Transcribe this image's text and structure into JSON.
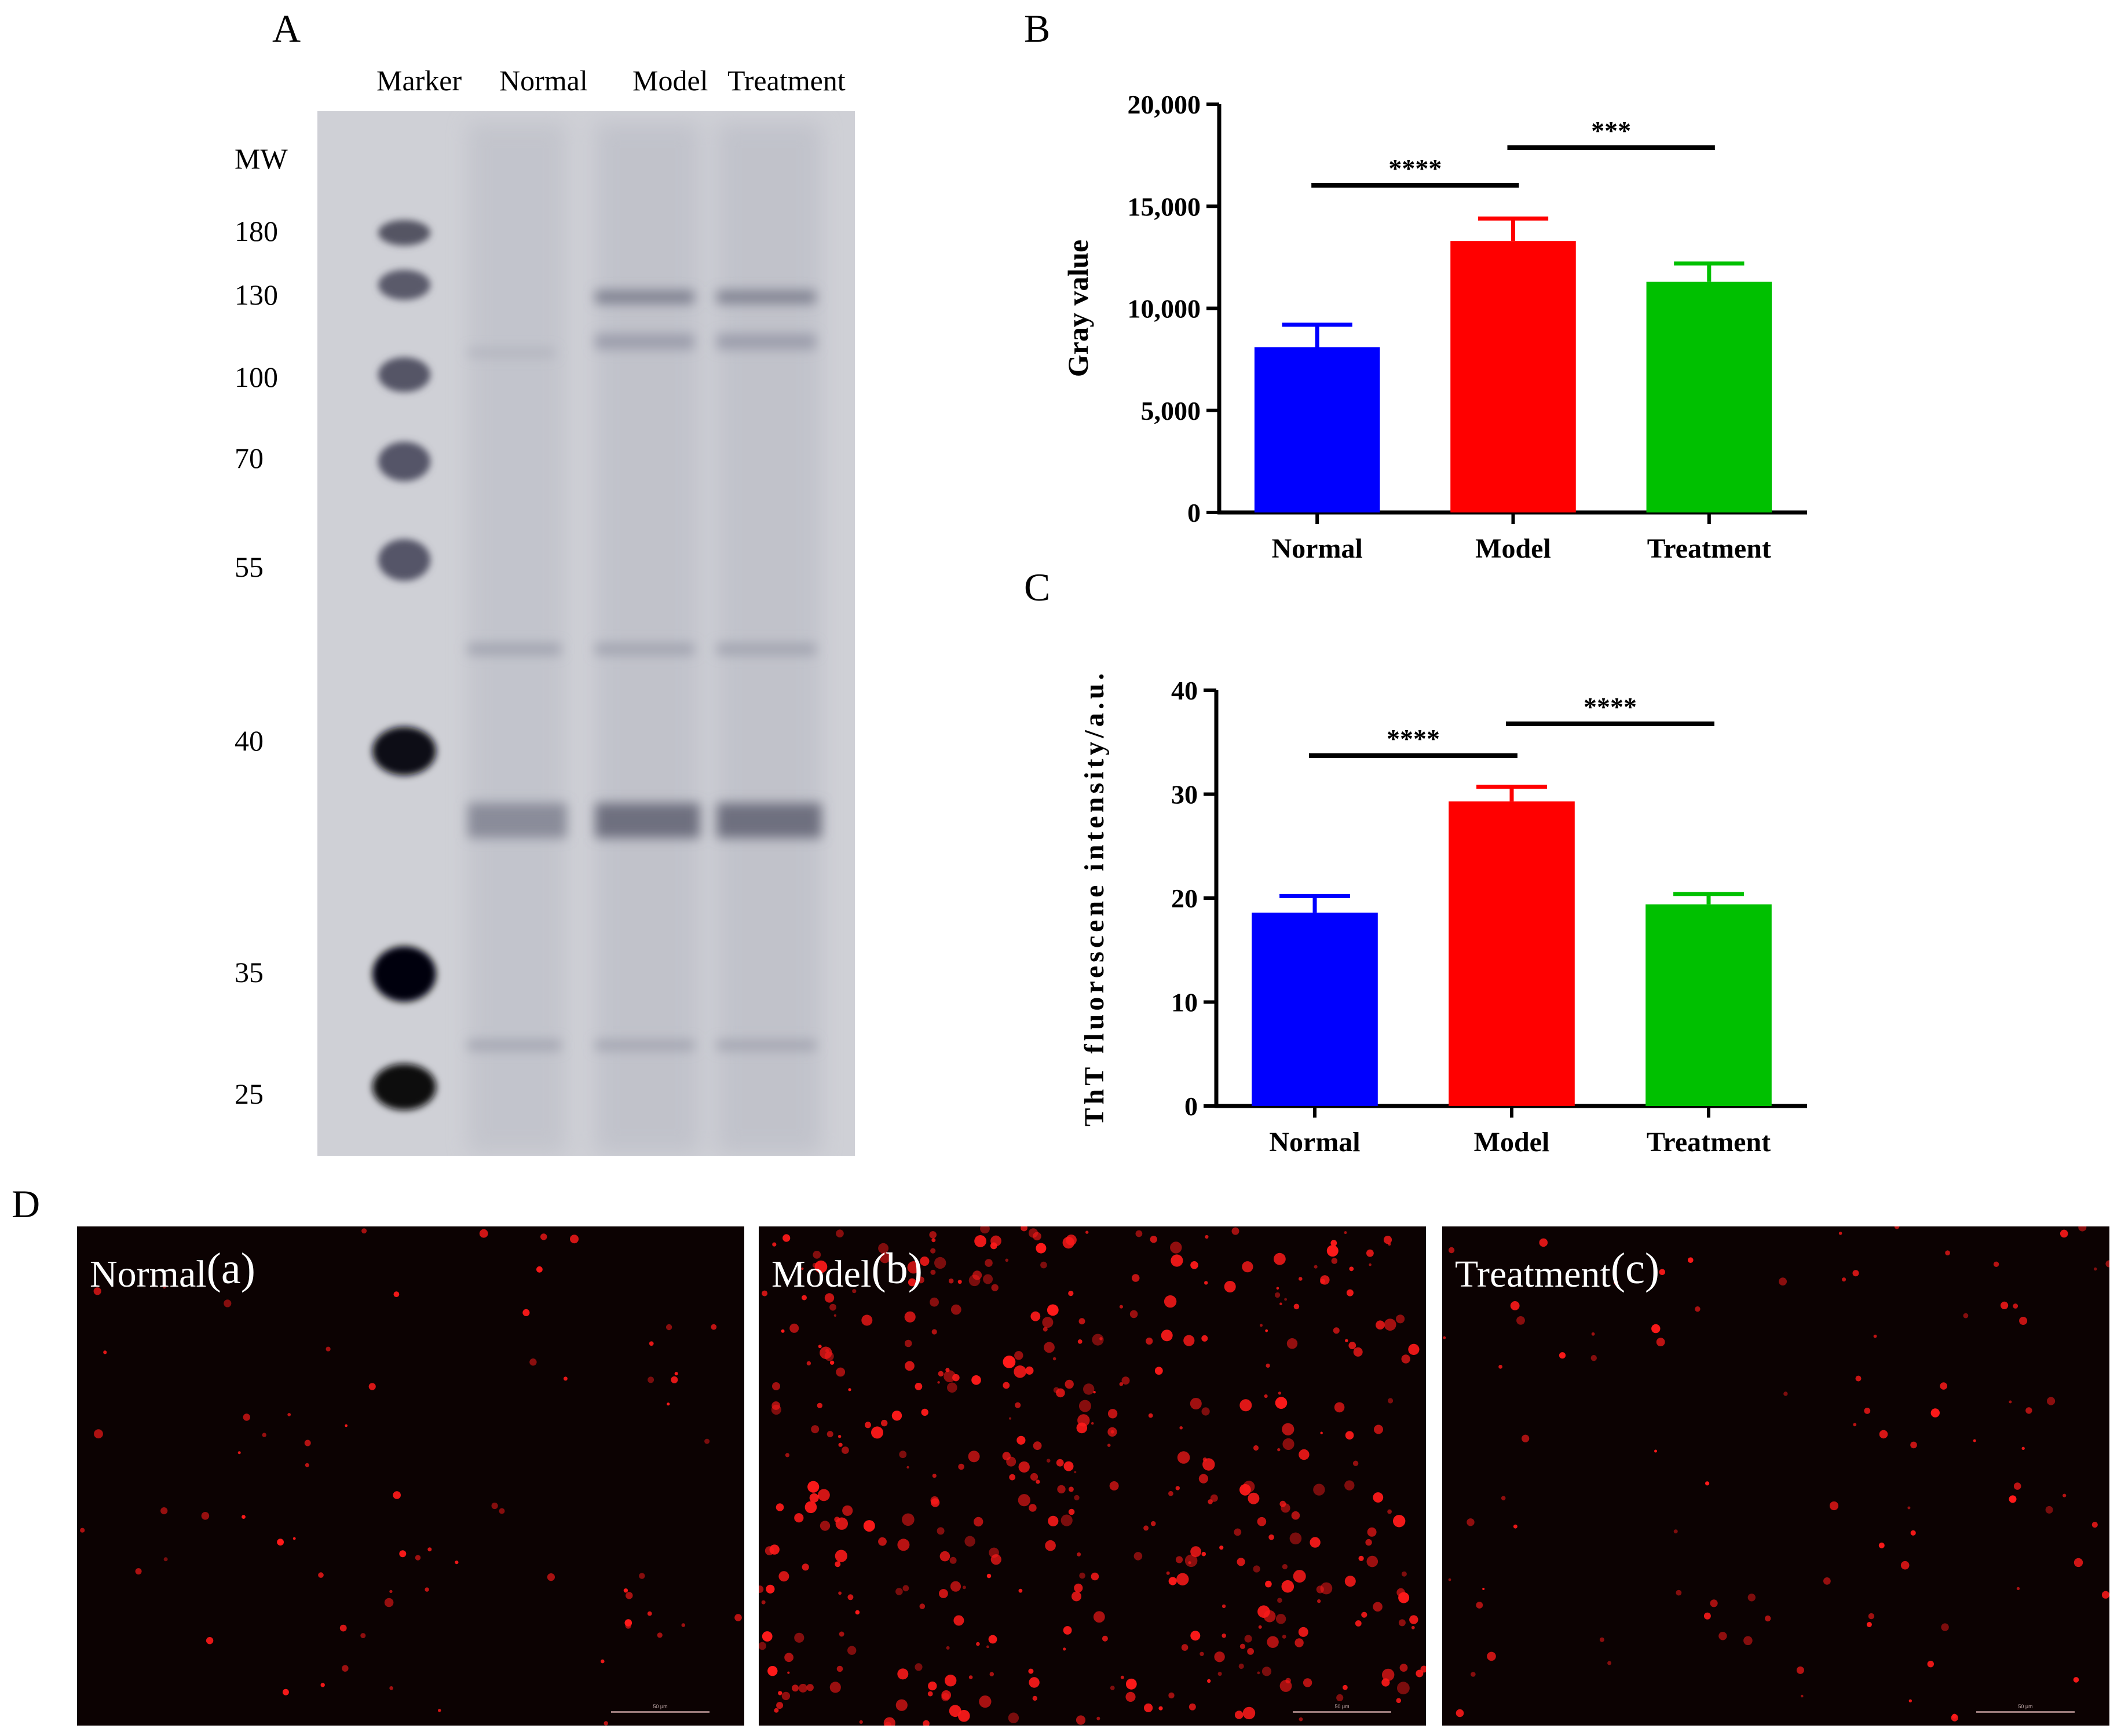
{
  "panel_a": {
    "letter": "A",
    "lanes": [
      "Marker",
      "Normal",
      "Model",
      "Treatment"
    ],
    "mw_title": "MW",
    "mw_markers": [
      "180",
      "130",
      "100",
      "70",
      "55",
      "40",
      "35",
      "25"
    ]
  },
  "chart_data": [
    {
      "panel": "B",
      "type": "bar",
      "categories": [
        "Normal",
        "Model",
        "Treatment"
      ],
      "values": [
        8100,
        13300,
        11300
      ],
      "errors": [
        1100,
        1100,
        900
      ],
      "colors": [
        "#0000ff",
        "#ff0000",
        "#00c000"
      ],
      "ylabel": "Gray value",
      "xlabel": "",
      "ylim": [
        0,
        20000
      ],
      "yticks": [
        "0",
        "5,000",
        "10,000",
        "15,000",
        "20,000"
      ],
      "significance": [
        {
          "from": "Normal",
          "to": "Model",
          "label": "****"
        },
        {
          "from": "Model",
          "to": "Treatment",
          "label": "***"
        }
      ]
    },
    {
      "panel": "C",
      "type": "bar",
      "categories": [
        "Normal",
        "Model",
        "Treatment"
      ],
      "values": [
        18.6,
        29.3,
        19.4
      ],
      "errors": [
        1.6,
        1.4,
        1.0
      ],
      "colors": [
        "#0000ff",
        "#ff0000",
        "#00c000"
      ],
      "ylabel": "ThT fluorescene intensity/a.u.",
      "xlabel": "",
      "ylim": [
        0,
        40
      ],
      "yticks": [
        "0",
        "10",
        "20",
        "30",
        "40"
      ],
      "significance": [
        {
          "from": "Normal",
          "to": "Model",
          "label": "****"
        },
        {
          "from": "Model",
          "to": "Treatment",
          "label": "****"
        }
      ]
    }
  ],
  "panel_d": {
    "letter": "D",
    "images": [
      {
        "label": "Normal",
        "sub": "(a)",
        "scale": "50 μm"
      },
      {
        "label": "Model",
        "sub": "(b)",
        "scale": "50 μm"
      },
      {
        "label": "Treatment",
        "sub": "(c)",
        "scale": "50 μm"
      }
    ]
  }
}
